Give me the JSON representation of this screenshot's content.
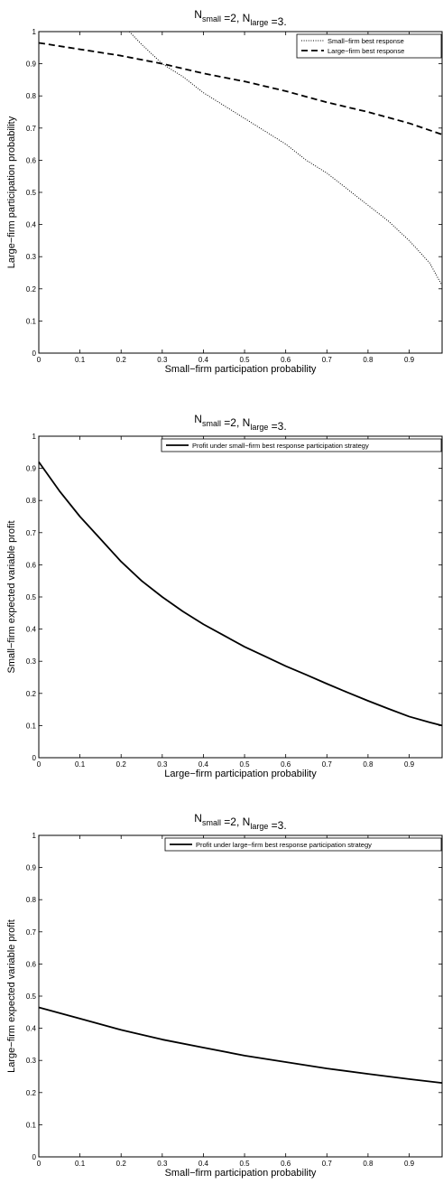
{
  "chart_data": [
    {
      "type": "line",
      "title": {
        "pre": "N",
        "sub1": "small",
        "mid": " =2, N",
        "sub2": "large",
        "post": " =3."
      },
      "xlabel": "Small−firm participation probability",
      "ylabel": "Large−firm participation probability",
      "xlim": [
        0,
        0.98
      ],
      "ylim": [
        0,
        1
      ],
      "x_ticks": [
        "0",
        "0.1",
        "0.2",
        "0.3",
        "0.4",
        "0.5",
        "0.6",
        "0.7",
        "0.8",
        "0.9"
      ],
      "y_ticks": [
        "0",
        "0.1",
        "0.2",
        "0.3",
        "0.4",
        "0.5",
        "0.6",
        "0.7",
        "0.8",
        "0.9",
        "1"
      ],
      "grid": false,
      "legend_position": "top-right",
      "series": [
        {
          "name": "Small−firm best response",
          "style": "dotted",
          "x": [
            0.22,
            0.25,
            0.3,
            0.35,
            0.4,
            0.45,
            0.5,
            0.55,
            0.6,
            0.65,
            0.7,
            0.75,
            0.8,
            0.85,
            0.9,
            0.95,
            0.98
          ],
          "y": [
            1.0,
            0.96,
            0.9,
            0.86,
            0.81,
            0.77,
            0.73,
            0.69,
            0.65,
            0.6,
            0.56,
            0.51,
            0.46,
            0.41,
            0.35,
            0.28,
            0.21
          ]
        },
        {
          "name": "Large−firm best response",
          "style": "dashed",
          "x": [
            0,
            0.1,
            0.2,
            0.3,
            0.4,
            0.5,
            0.6,
            0.7,
            0.8,
            0.9,
            0.98
          ],
          "y": [
            0.965,
            0.945,
            0.925,
            0.9,
            0.87,
            0.845,
            0.815,
            0.78,
            0.75,
            0.715,
            0.68
          ]
        }
      ]
    },
    {
      "type": "line",
      "title": {
        "pre": "N",
        "sub1": "small",
        "mid": " =2, N",
        "sub2": "large",
        "post": " =3."
      },
      "xlabel": "Large−firm participation probability",
      "ylabel": "Small−firm expected variable profit",
      "xlim": [
        0,
        0.98
      ],
      "ylim": [
        0,
        1
      ],
      "x_ticks": [
        "0",
        "0.1",
        "0.2",
        "0.3",
        "0.4",
        "0.5",
        "0.6",
        "0.7",
        "0.8",
        "0.9"
      ],
      "y_ticks": [
        "0",
        "0.1",
        "0.2",
        "0.3",
        "0.4",
        "0.5",
        "0.6",
        "0.7",
        "0.8",
        "0.9",
        "1"
      ],
      "grid": false,
      "legend_position": "top-right",
      "series": [
        {
          "name": "Profit under small−firm best response participation strategy",
          "style": "solid",
          "x": [
            0,
            0.05,
            0.1,
            0.15,
            0.2,
            0.25,
            0.3,
            0.35,
            0.4,
            0.45,
            0.5,
            0.55,
            0.6,
            0.65,
            0.7,
            0.75,
            0.8,
            0.85,
            0.9,
            0.95,
            0.98
          ],
          "y": [
            0.92,
            0.83,
            0.75,
            0.68,
            0.61,
            0.55,
            0.5,
            0.455,
            0.415,
            0.38,
            0.345,
            0.315,
            0.285,
            0.258,
            0.23,
            0.203,
            0.177,
            0.152,
            0.128,
            0.11,
            0.1
          ]
        }
      ]
    },
    {
      "type": "line",
      "title": {
        "pre": "N",
        "sub1": "small",
        "mid": " =2, N",
        "sub2": "large",
        "post": " =3."
      },
      "xlabel": "Small−firm participation probability",
      "ylabel": "Large−firm expected variable profit",
      "xlim": [
        0,
        0.98
      ],
      "ylim": [
        0,
        1
      ],
      "x_ticks": [
        "0",
        "0.1",
        "0.2",
        "0.3",
        "0.4",
        "0.5",
        "0.6",
        "0.7",
        "0.8",
        "0.9"
      ],
      "y_ticks": [
        "0",
        "0.1",
        "0.2",
        "0.3",
        "0.4",
        "0.5",
        "0.6",
        "0.7",
        "0.8",
        "0.9",
        "1"
      ],
      "grid": false,
      "legend_position": "top-right",
      "series": [
        {
          "name": "Profit under large−firm best response participation strategy",
          "style": "solid",
          "x": [
            0,
            0.1,
            0.2,
            0.3,
            0.4,
            0.5,
            0.6,
            0.7,
            0.8,
            0.9,
            0.98
          ],
          "y": [
            0.465,
            0.43,
            0.395,
            0.365,
            0.34,
            0.315,
            0.295,
            0.275,
            0.258,
            0.242,
            0.23
          ]
        }
      ]
    }
  ]
}
